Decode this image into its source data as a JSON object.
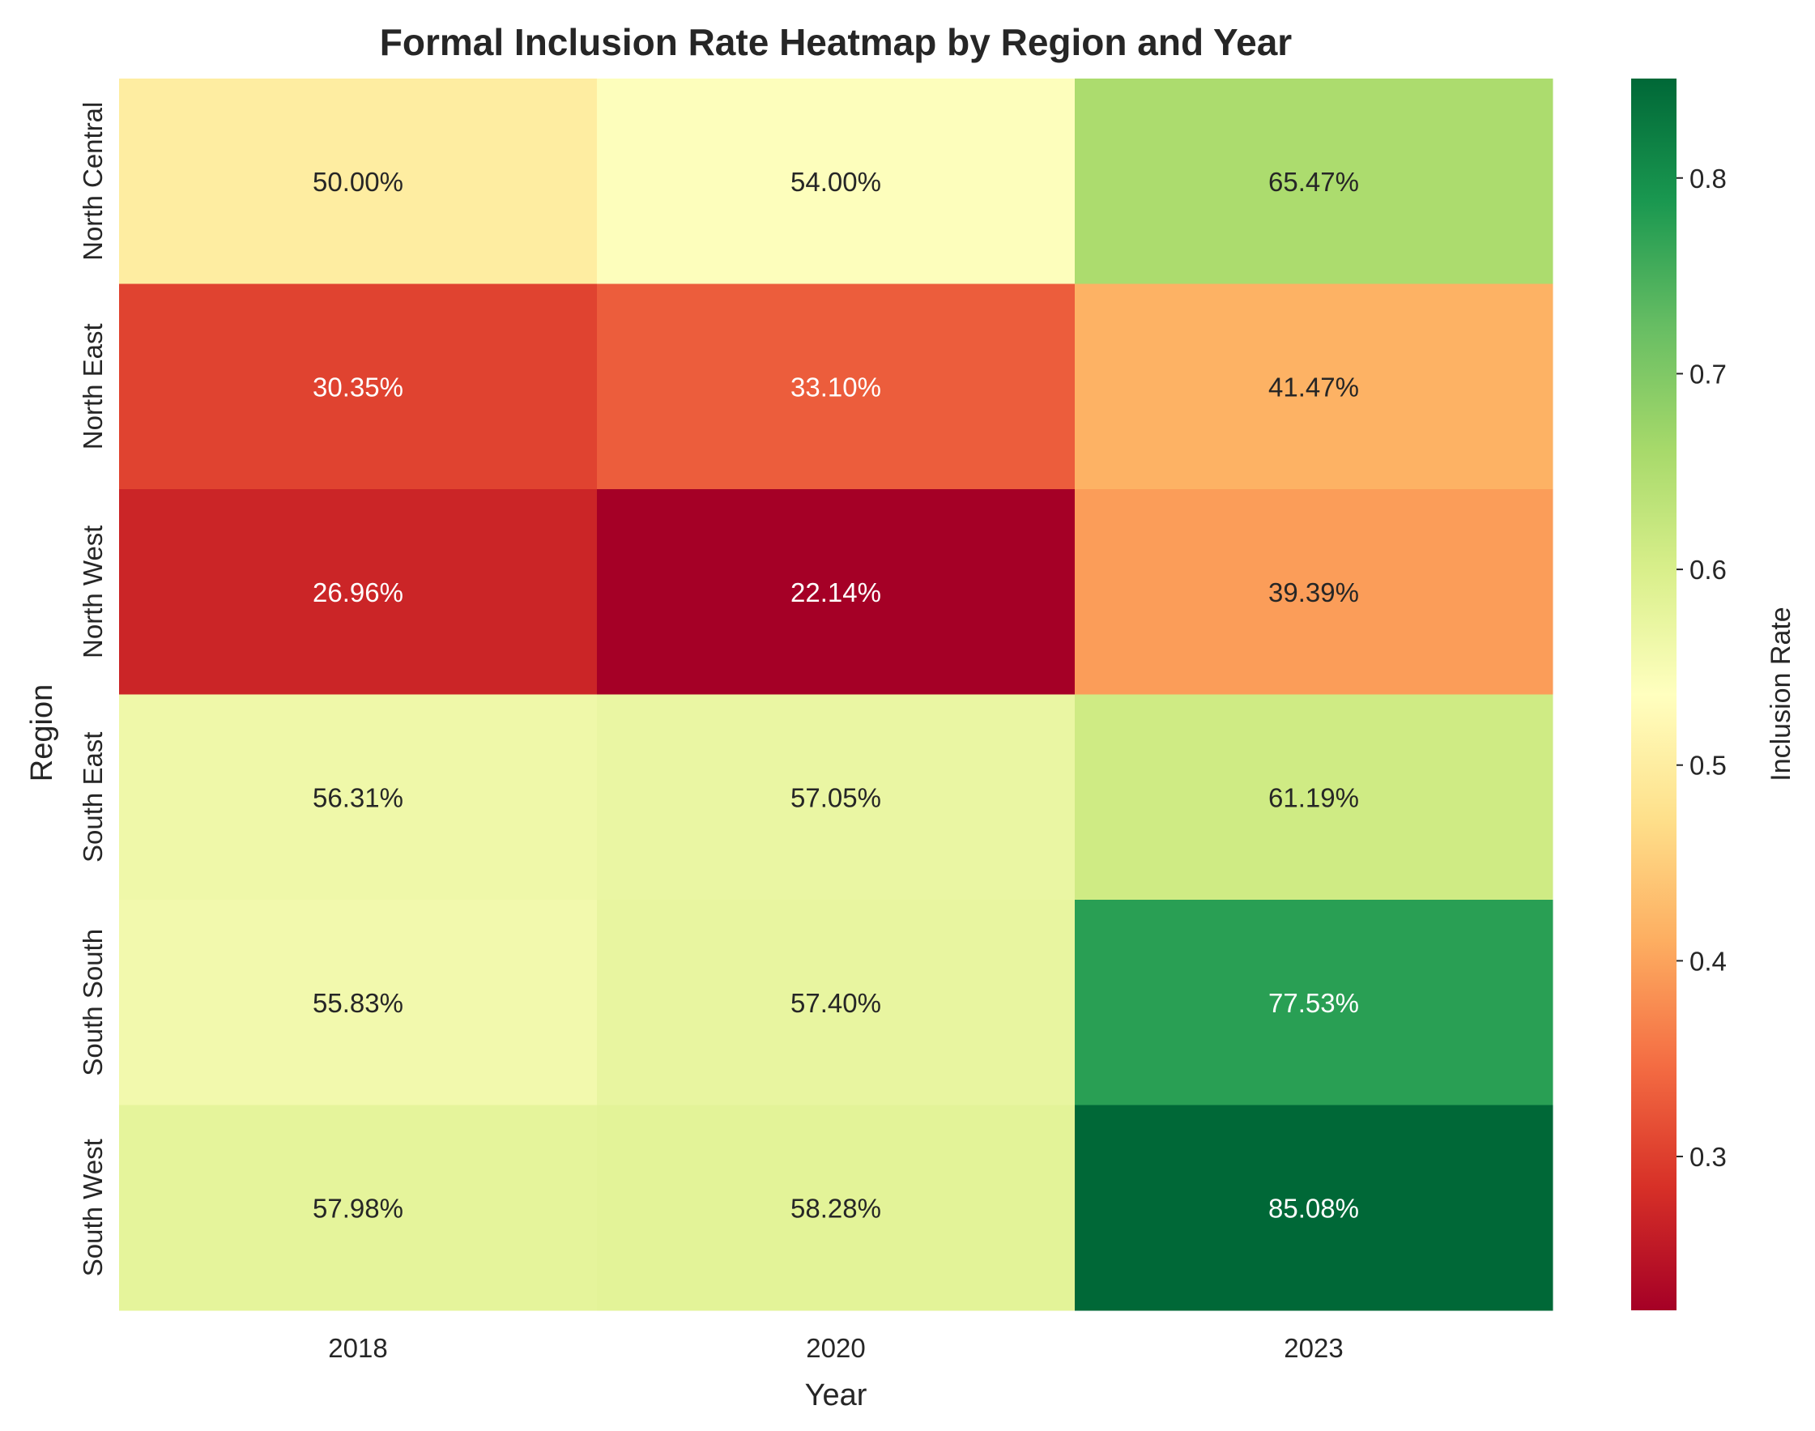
{
  "chart_data": {
    "type": "heatmap",
    "title": "Formal Inclusion Rate Heatmap by Region and Year",
    "xlabel": "Year",
    "ylabel": "Region",
    "x": [
      "2018",
      "2020",
      "2023"
    ],
    "y": [
      "North Central",
      "North East",
      "North West",
      "South East",
      "South South",
      "South West"
    ],
    "values": [
      [
        0.5,
        0.54,
        0.6547
      ],
      [
        0.3035,
        0.331,
        0.4147
      ],
      [
        0.2696,
        0.2214,
        0.3939
      ],
      [
        0.5631,
        0.5705,
        0.6119
      ],
      [
        0.5583,
        0.574,
        0.7753
      ],
      [
        0.5798,
        0.5828,
        0.8508
      ]
    ],
    "cell_labels": [
      [
        "50.00%",
        "54.00%",
        "65.47%"
      ],
      [
        "30.35%",
        "33.10%",
        "41.47%"
      ],
      [
        "26.96%",
        "22.14%",
        "39.39%"
      ],
      [
        "56.31%",
        "57.05%",
        "61.19%"
      ],
      [
        "55.83%",
        "57.40%",
        "77.53%"
      ],
      [
        "57.98%",
        "58.28%",
        "85.08%"
      ]
    ],
    "colormap": "RdYlGn",
    "colorbar": {
      "label": "Inclusion Rate",
      "range": [
        0.2214,
        0.8508
      ],
      "ticks": [
        0.3,
        0.4,
        0.5,
        0.6,
        0.7,
        0.8
      ],
      "tick_labels": [
        "0.3",
        "0.4",
        "0.5",
        "0.6",
        "0.7",
        "0.8"
      ],
      "position": "right"
    },
    "grid": false
  }
}
